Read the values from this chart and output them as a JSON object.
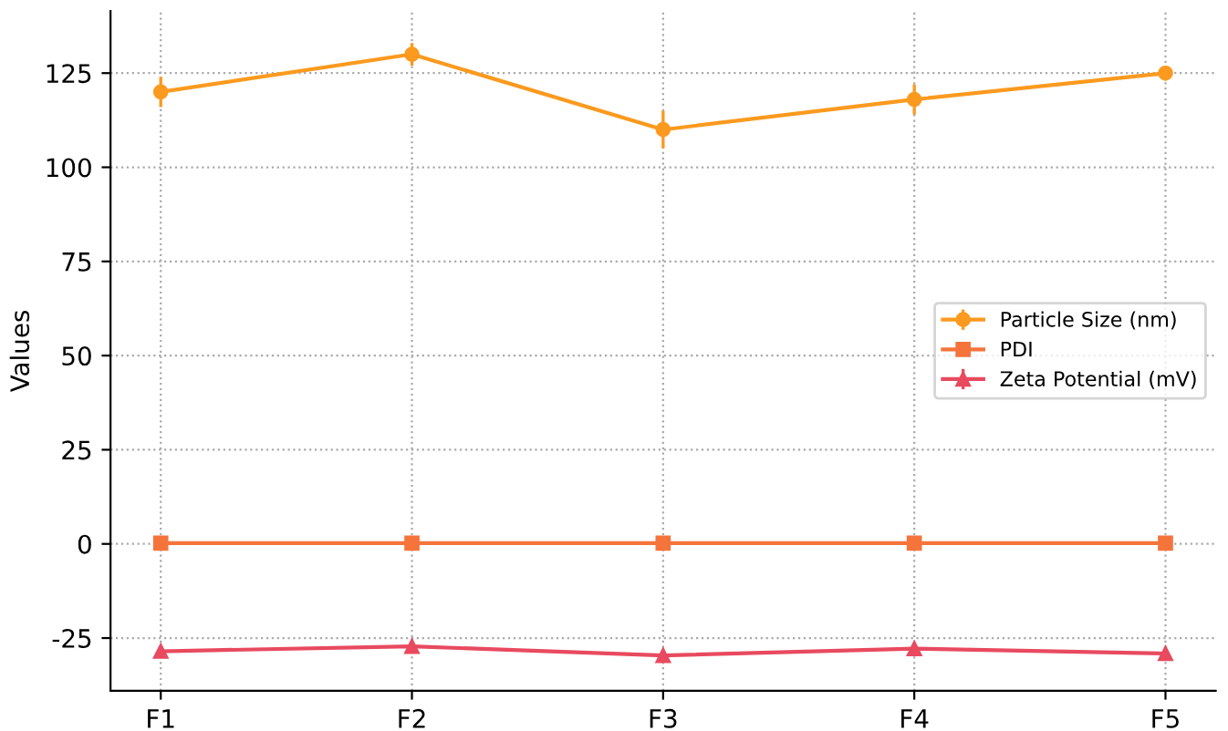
{
  "chart_data": {
    "type": "line",
    "ylabel": "Values",
    "categories": [
      "F1",
      "F2",
      "F3",
      "F4",
      "F5"
    ],
    "series": [
      {
        "name": "Particle Size (nm)",
        "color": "#fb9a1f",
        "marker": "circle",
        "values": [
          120,
          130,
          110,
          118,
          125
        ],
        "errors": [
          4,
          3,
          5,
          4,
          2
        ]
      },
      {
        "name": "PDI",
        "color": "#f4743b",
        "marker": "square",
        "values": [
          0.2,
          0.2,
          0.2,
          0.2,
          0.2
        ]
      },
      {
        "name": "Zeta Potential (mV)",
        "color": "#e84a5f",
        "marker": "triangle",
        "values": [
          -28.5,
          -27.2,
          -29.6,
          -27.8,
          -29.1
        ],
        "errors": [
          1,
          1,
          1,
          1,
          1
        ]
      }
    ],
    "ylim": [
      -39,
      141.5
    ],
    "yticks": [
      -25,
      0,
      25,
      50,
      75,
      100,
      125
    ],
    "grid": true,
    "legend": "right"
  }
}
